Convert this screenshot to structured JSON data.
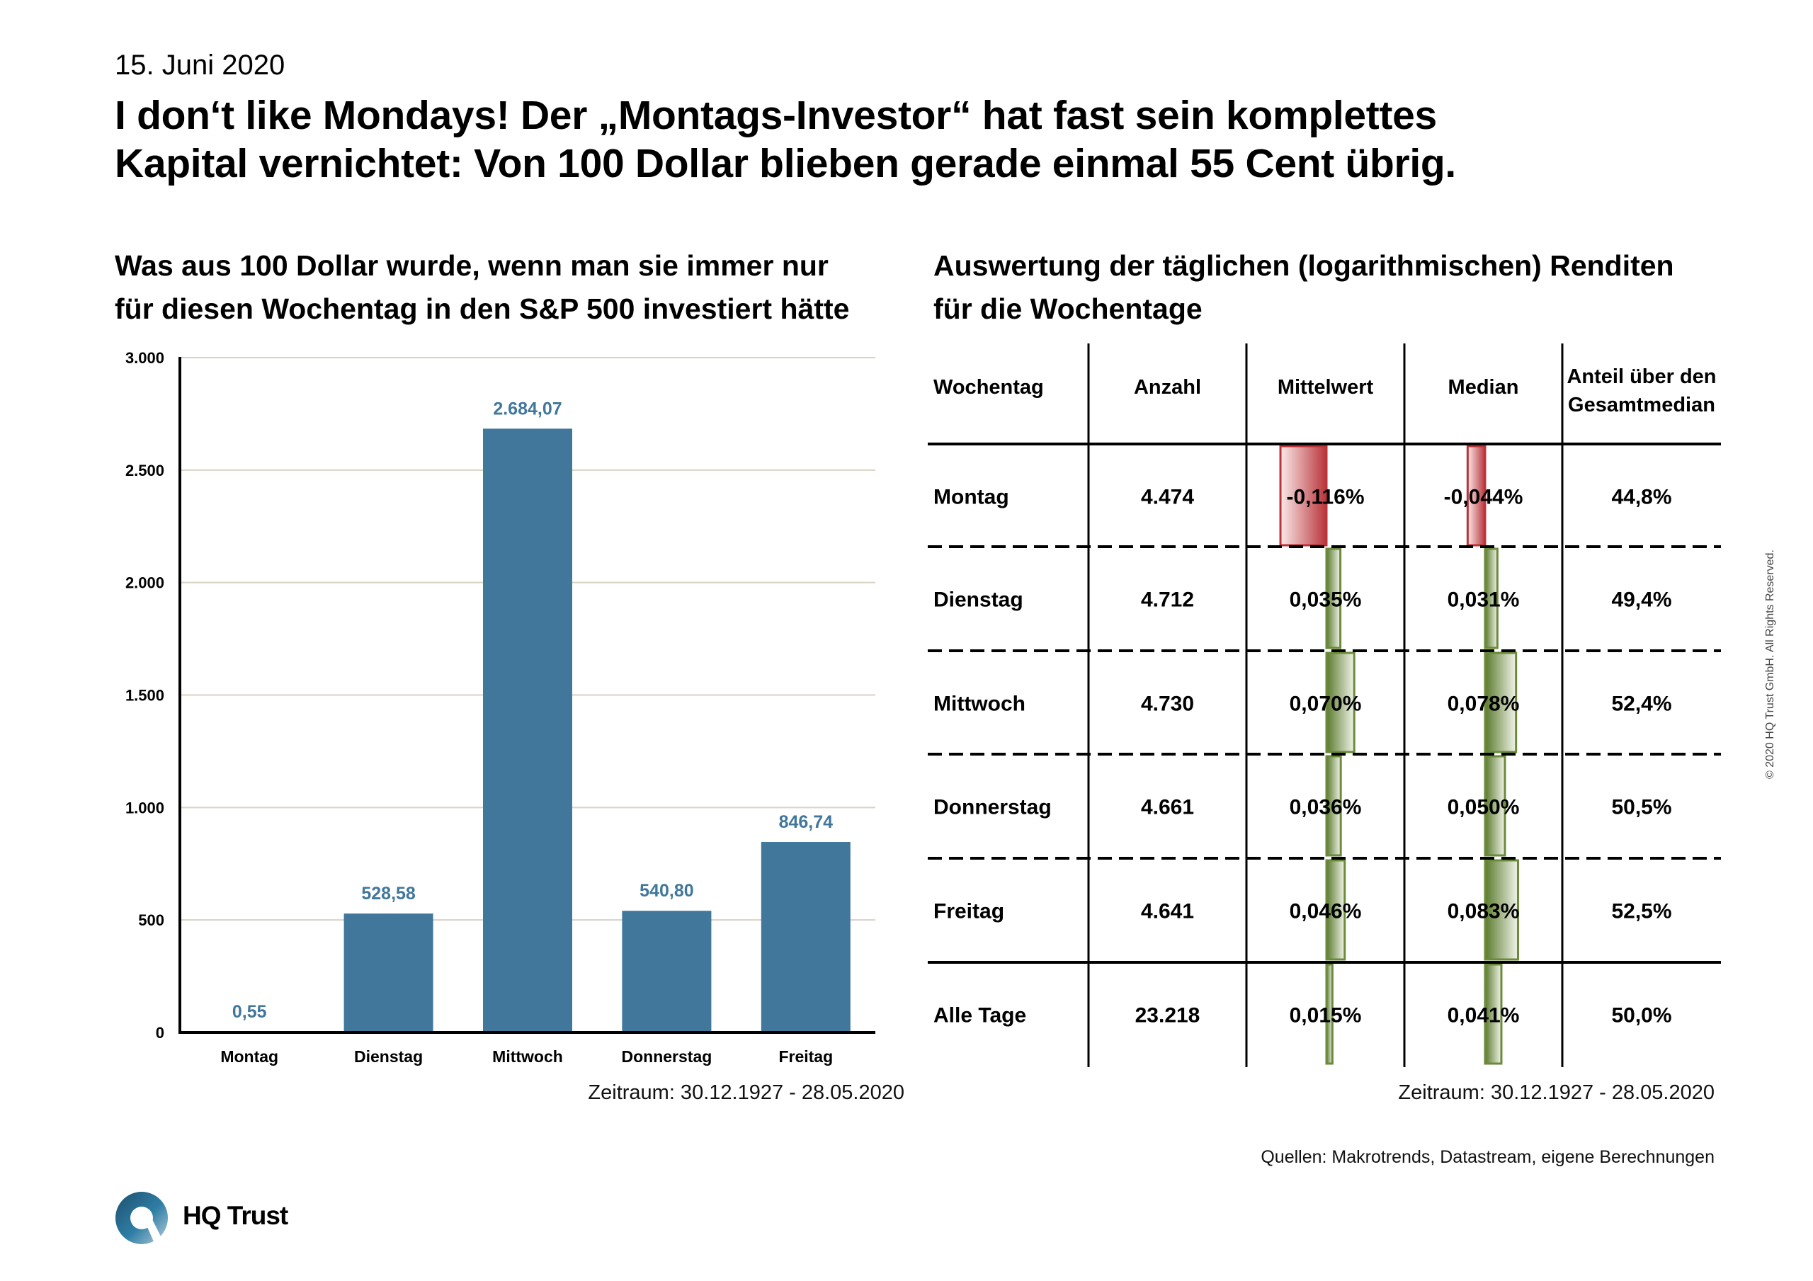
{
  "date": "15. Juni 2020",
  "headline": {
    "line1": "I don‘t like Mondays! Der „Montags-Investor“ hat fast sein komplettes",
    "line2": "Kapital vernichtet: Von 100 Dollar blieben gerade einmal 55 Cent übrig."
  },
  "chart_title": {
    "line1": "Was aus 100 Dollar wurde, wenn man sie immer nur",
    "line2": "für diesen Wochentag in den S&P 500 investiert hätte"
  },
  "table_title": {
    "line1": "Auswertung der täglichen (logarithmischen) Renditen",
    "line2": "für die Wochentage"
  },
  "chart_data": [
    {
      "type": "bar",
      "title": "Was aus 100 Dollar wurde, wenn man sie immer nur für diesen Wochentag in den S&P 500 investiert hätte",
      "categories": [
        "Montag",
        "Dienstag",
        "Mittwoch",
        "Donnerstag",
        "Freitag"
      ],
      "values": [
        0.55,
        528.58,
        2684.07,
        540.8,
        846.74
      ],
      "value_labels": [
        "0,55",
        "528,58",
        "2.684,07",
        "540,80",
        "846,74"
      ],
      "yticks": [
        0,
        500,
        1000,
        1500,
        2000,
        2500,
        3000
      ],
      "ytick_labels": [
        "0",
        "500",
        "1.000",
        "1.500",
        "2.000",
        "2.500",
        "3.000"
      ],
      "ylim": [
        0,
        3000
      ],
      "xlabel": "",
      "ylabel": "",
      "grid": true,
      "bar_color": "#40779b"
    },
    {
      "type": "table",
      "title": "Auswertung der täglichen (logarithmischen) Renditen für die Wochentage",
      "columns": [
        "Wochentag",
        "Anzahl",
        "Mittelwert",
        "Median",
        "Anteil über den Gesamtmedian"
      ],
      "rows": [
        {
          "day": "Montag",
          "count": "4.474",
          "mean": "-0,116%",
          "mean_value": -0.116,
          "median": "-0,044%",
          "median_value": -0.044,
          "share": "44,8%"
        },
        {
          "day": "Dienstag",
          "count": "4.712",
          "mean": "0,035%",
          "mean_value": 0.035,
          "median": "0,031%",
          "median_value": 0.031,
          "share": "49,4%"
        },
        {
          "day": "Mittwoch",
          "count": "4.730",
          "mean": "0,070%",
          "mean_value": 0.07,
          "median": "0,078%",
          "median_value": 0.078,
          "share": "52,4%"
        },
        {
          "day": "Donnerstag",
          "count": "4.661",
          "mean": "0,036%",
          "mean_value": 0.036,
          "median": "0,050%",
          "median_value": 0.05,
          "share": "50,5%"
        },
        {
          "day": "Freitag",
          "count": "4.641",
          "mean": "0,046%",
          "mean_value": 0.046,
          "median": "0,083%",
          "median_value": 0.083,
          "share": "52,5%"
        },
        {
          "day": "Alle Tage",
          "count": "23.218",
          "mean": "0,015%",
          "mean_value": 0.015,
          "median": "0,041%",
          "median_value": 0.041,
          "share": "50,0%"
        }
      ],
      "positive_color": "#6b8a3a",
      "negative_color": "#b8343a"
    }
  ],
  "chart_period": "Zeitraum: 30.12.1927 - 28.05.2020",
  "table_period": "Zeitraum: 30.12.1927 - 28.05.2020",
  "sources": "Quellen: Makrotrends, Datastream, eigene Berechnungen",
  "copyright": "© 2020 HQ Trust GmbH. All Rights Reserved.",
  "logo_text": "HQ Trust"
}
